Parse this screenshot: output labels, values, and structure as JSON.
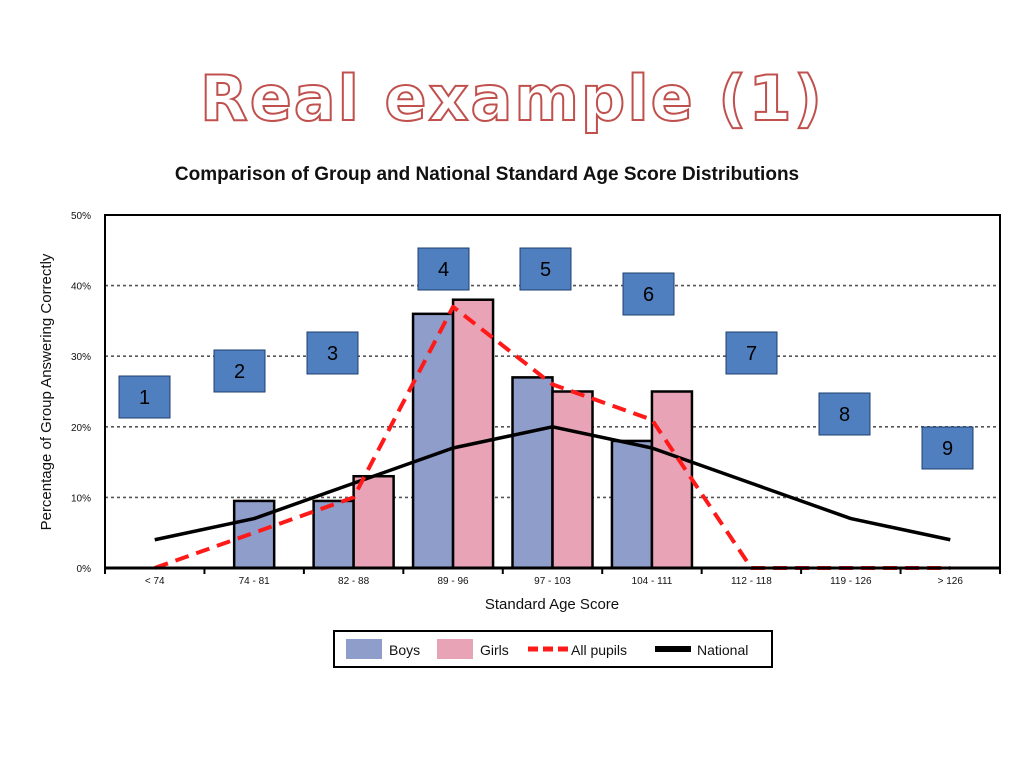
{
  "slide": {
    "title": "Real example (1)"
  },
  "colors": {
    "boys": "#8f9dcb",
    "girls": "#e9a3b6",
    "all_pupils": "#ff1a1a",
    "national": "#000000",
    "box_fill": "#4f7fbf",
    "title_outline": "#c0504d"
  },
  "chart_data": {
    "type": "bar",
    "title": "Comparison of Group and National Standard Age Score Distributions",
    "xlabel": "Standard Age Score",
    "ylabel": "Percentage of Group Answering Correctly",
    "ylim": [
      0,
      50
    ],
    "yticks": [
      "0%",
      "10%",
      "20%",
      "30%",
      "40%",
      "50%"
    ],
    "categories": [
      "< 74",
      "74 - 81",
      "82 - 88",
      "89 - 96",
      "97 - 103",
      "104 - 111",
      "112 - 118",
      "119 - 126",
      "> 126"
    ],
    "series": [
      {
        "name": "Boys",
        "kind": "bar",
        "values": [
          0,
          9.5,
          9.5,
          36,
          27,
          18,
          0,
          0,
          0
        ]
      },
      {
        "name": "Girls",
        "kind": "bar",
        "values": [
          0,
          0,
          13,
          38,
          25,
          25,
          0,
          0,
          0
        ]
      },
      {
        "name": "All pupils",
        "kind": "dashed-line",
        "values": [
          0,
          5,
          10,
          37,
          26,
          21,
          0,
          0,
          0
        ]
      },
      {
        "name": "National",
        "kind": "line",
        "values": [
          4,
          7,
          12,
          17,
          20,
          17,
          12,
          7,
          4
        ]
      }
    ],
    "grid": "dotted horizontal",
    "legend_position": "bottom",
    "annotations": [
      "1",
      "2",
      "3",
      "4",
      "5",
      "6",
      "7",
      "8",
      "9"
    ]
  }
}
